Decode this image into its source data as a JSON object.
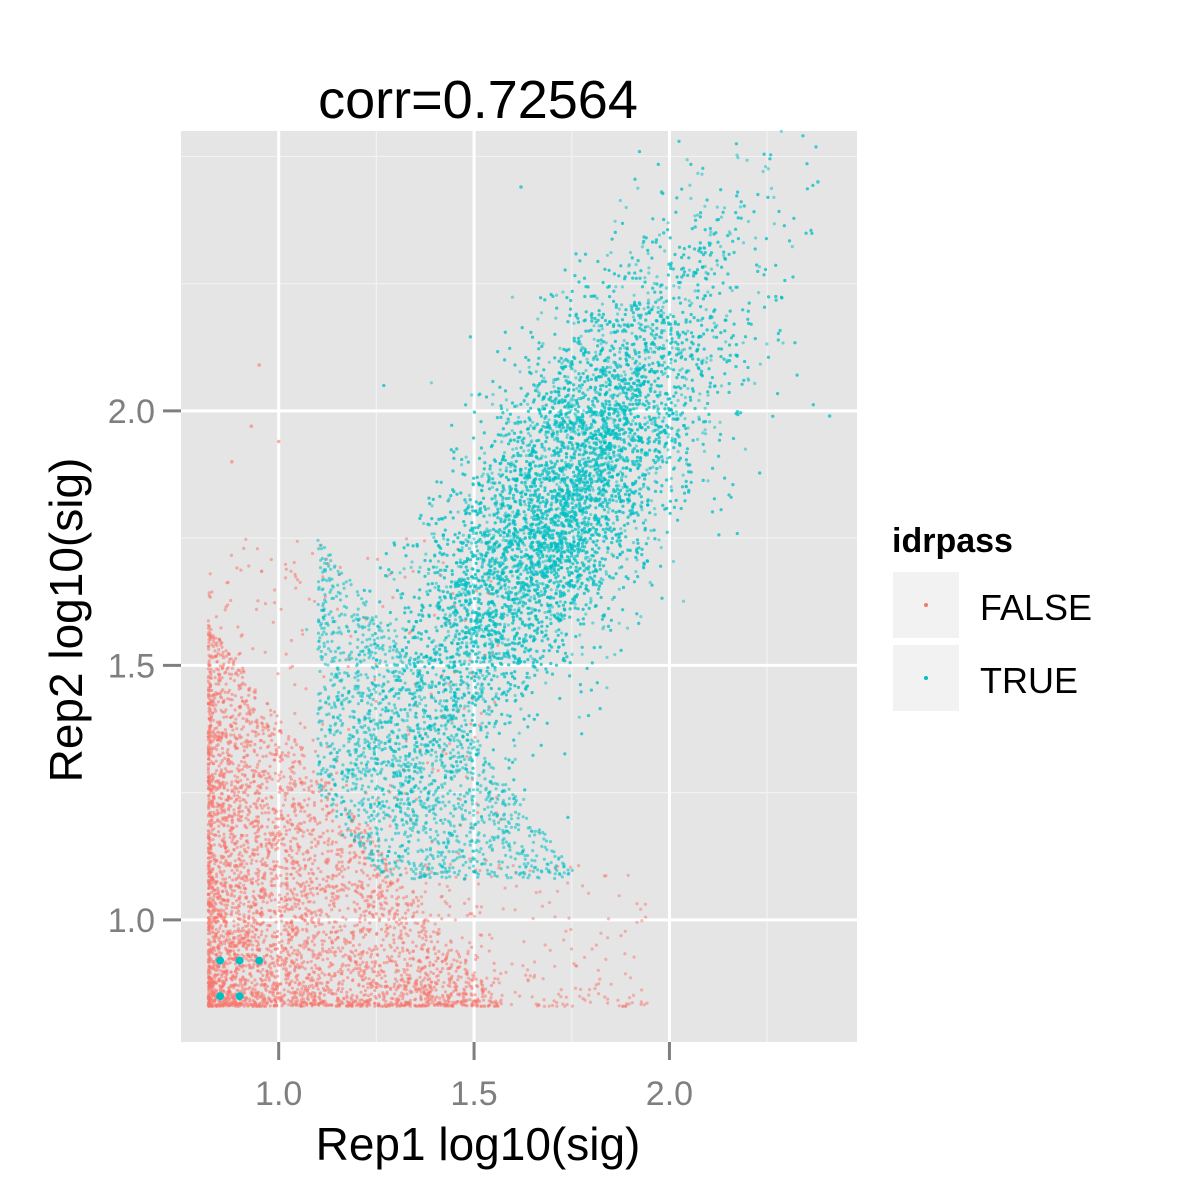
{
  "chart_data": {
    "type": "scatter",
    "title": "corr=0.72564",
    "xlabel": "Rep1 log10(sig)",
    "ylabel": "Rep2 log10(sig)",
    "xlim": [
      0.75,
      2.48
    ],
    "ylim": [
      0.76,
      2.55
    ],
    "x_ticks": [
      1.0,
      1.5,
      2.0
    ],
    "x_tick_labels": [
      "1.0",
      "1.5",
      "2.0"
    ],
    "y_ticks": [
      1.0,
      1.5,
      2.0
    ],
    "y_tick_labels": [
      "1.0",
      "1.5",
      "2.0"
    ],
    "grid": true,
    "legend": {
      "title": "idrpass",
      "position": "right",
      "entries": [
        {
          "label": "FALSE",
          "color": "#F8766D"
        },
        {
          "label": "TRUE",
          "color": "#00BFC4"
        }
      ]
    },
    "series": [
      {
        "name": "FALSE",
        "color": "#F8766D",
        "description_points": [
          {
            "x": 0.82,
            "y": 0.83
          },
          {
            "x": 1.0,
            "y": 1.0
          },
          {
            "x": 1.2,
            "y": 0.95
          },
          {
            "x": 1.4,
            "y": 0.9
          },
          {
            "x": 1.6,
            "y": 0.92
          },
          {
            "x": 1.9,
            "y": 0.88
          },
          {
            "x": 0.9,
            "y": 1.6
          },
          {
            "x": 1.05,
            "y": 1.45
          },
          {
            "x": 0.95,
            "y": 2.1
          }
        ]
      },
      {
        "name": "TRUE",
        "color": "#00BFC4",
        "description_points": [
          {
            "x": 1.5,
            "y": 1.6
          },
          {
            "x": 1.7,
            "y": 1.9
          },
          {
            "x": 1.9,
            "y": 2.1
          },
          {
            "x": 2.1,
            "y": 1.8
          },
          {
            "x": 1.3,
            "y": 1.5
          },
          {
            "x": 2.38,
            "y": 2.45
          },
          {
            "x": 0.85,
            "y": 0.92
          },
          {
            "x": 0.9,
            "y": 0.85
          }
        ]
      }
    ]
  }
}
